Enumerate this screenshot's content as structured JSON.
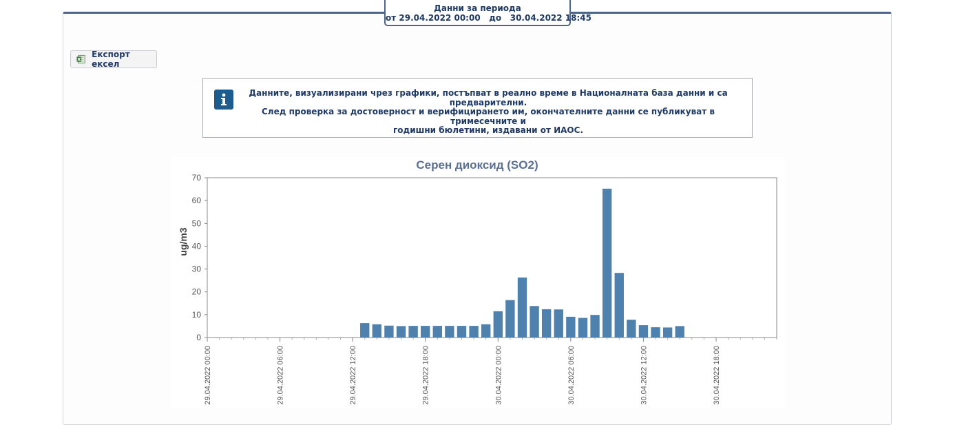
{
  "period": {
    "title": "Данни за периода",
    "from_label": "от",
    "from": "29.04.2022 00:00",
    "to_label": "до",
    "to": "30.04.2022 18:45"
  },
  "toolbar": {
    "export_label": "Експорт ексел",
    "export_icon": "excel-icon"
  },
  "info": {
    "icon": "info-icon",
    "line1": "Данните, визуализирани чрез графики, постъпват в реално време в Националната база данни и са",
    "line2": "предварителни.",
    "line3": "След проверка за достоверност и верифицирането им, окончателните данни се публикуват в тримесечните и",
    "line4": "годишни бюлетини, издавани от ИАОС."
  },
  "colors": {
    "accent": "#4a6587",
    "bar": "#4e81ad",
    "text": "#1f3a66",
    "title": "#5a6f94"
  },
  "chart_data": {
    "type": "bar",
    "title": "Серен диоксид (SO2)",
    "ylabel": "ug/m3",
    "xlabel": "",
    "ylim": [
      0,
      70
    ],
    "yticks": [
      0,
      10,
      20,
      30,
      40,
      50,
      60,
      70
    ],
    "xlim": [
      "29.04.2022 00:00",
      "30.04.2022 23:00"
    ],
    "xticks": [
      "29.04.2022 00:00",
      "29.04.2022 06:00",
      "29.04.2022 12:00",
      "29.04.2022 18:00",
      "30.04.2022 00:00",
      "30.04.2022 06:00",
      "30.04.2022 12:00",
      "30.04.2022 18:00"
    ],
    "grid": false,
    "categories": [
      "29.04.2022 13:00",
      "29.04.2022 14:00",
      "29.04.2022 15:00",
      "29.04.2022 16:00",
      "29.04.2022 17:00",
      "29.04.2022 18:00",
      "29.04.2022 19:00",
      "29.04.2022 20:00",
      "29.04.2022 21:00",
      "29.04.2022 22:00",
      "29.04.2022 23:00",
      "30.04.2022 00:00",
      "30.04.2022 01:00",
      "30.04.2022 02:00",
      "30.04.2022 03:00",
      "30.04.2022 04:00",
      "30.04.2022 05:00",
      "30.04.2022 06:00",
      "30.04.2022 07:00",
      "30.04.2022 08:00",
      "30.04.2022 09:00",
      "30.04.2022 10:00",
      "30.04.2022 11:00",
      "30.04.2022 12:00",
      "30.04.2022 13:00",
      "30.04.2022 14:00",
      "30.04.2022 15:00"
    ],
    "values": [
      6.3,
      5.8,
      5.2,
      5.0,
      5.1,
      5.1,
      5.1,
      5.1,
      5.1,
      5.1,
      5.8,
      11.5,
      16.4,
      26.3,
      13.8,
      12.4,
      12.3,
      9.1,
      8.6,
      9.9,
      65.2,
      28.3,
      7.8,
      5.4,
      4.5,
      4.4,
      5.0
    ]
  }
}
